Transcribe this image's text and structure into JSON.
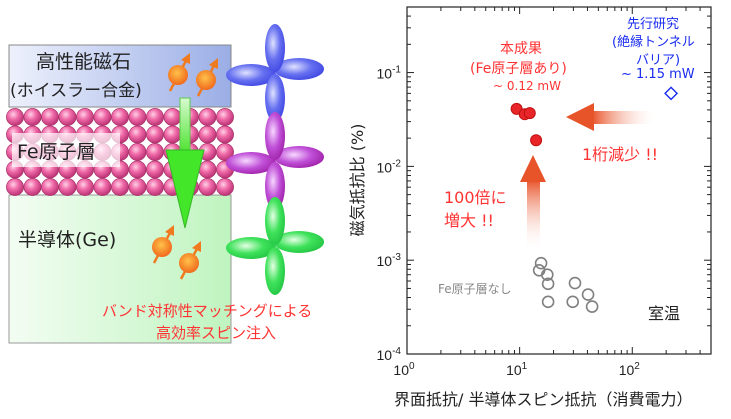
{
  "diagram": {
    "magnet_label_line1": "高性能磁石",
    "magnet_label_line2": "(ホイスラー合金)",
    "fe_layer_label": "Fe原子層",
    "semiconductor_label": "半導体(Ge)",
    "caption_line1": "バンド対称性マッチングによる",
    "caption_line2": "高効率スピン注入",
    "colors": {
      "magnet": "#9fb2ea",
      "fe_atom": "#f06aa8",
      "semiconductor": "#c4f7c4",
      "arrow": "#44e62a",
      "spin": "#f07a20",
      "caption": "#ff3333"
    }
  },
  "chart_data": {
    "type": "scatter",
    "xscale": "log",
    "yscale": "log",
    "xlim": [
      1,
      500
    ],
    "ylim": [
      0.0001,
      0.5
    ],
    "xlabel": "界面抵抗/ 半導体スピン抵抗（消費電力）",
    "ylabel": "磁気抵抗比 (%)",
    "xticks": [
      {
        "value": 1,
        "base": "10",
        "exp": "0"
      },
      {
        "value": 10,
        "base": "10",
        "exp": "1"
      },
      {
        "value": 100,
        "base": "10",
        "exp": "2"
      }
    ],
    "yticks": [
      {
        "value": 0.0001,
        "base": "10",
        "exp": "-4"
      },
      {
        "value": 0.001,
        "base": "10",
        "exp": "-3"
      },
      {
        "value": 0.01,
        "base": "10",
        "exp": "-2"
      },
      {
        "value": 0.1,
        "base": "10",
        "exp": "-1"
      }
    ],
    "series": [
      {
        "name": "本成果 (Fe原子層あり)",
        "marker": "filled-circle",
        "color": "#e8262a",
        "points": [
          [
            9.4,
            0.041
          ],
          [
            11.1,
            0.036
          ],
          [
            12.3,
            0.037
          ],
          [
            14.0,
            0.019
          ]
        ]
      },
      {
        "name": "Fe原子層なし",
        "marker": "open-circle",
        "color": "#808080",
        "points": [
          [
            15.5,
            0.00093
          ],
          [
            14.9,
            0.00078
          ],
          [
            17.6,
            0.0007
          ],
          [
            17.9,
            0.00056
          ],
          [
            17.9,
            0.00036
          ],
          [
            31,
            0.00057
          ],
          [
            29.6,
            0.00036
          ],
          [
            40.5,
            0.00043
          ],
          [
            44,
            0.00032
          ]
        ]
      },
      {
        "name": "先行研究 (絶縁トンネルバリア)",
        "marker": "open-diamond",
        "color": "#1a2cf0",
        "points": [
          [
            221,
            0.06
          ]
        ]
      }
    ],
    "annotations": {
      "this_work_line1": "本成果",
      "this_work_line2": "(Fe原子層あり)",
      "this_work_power": "~ 0.12 mW",
      "prior_line1": "先行研究",
      "prior_line2": "(絶縁トンネル",
      "prior_line3": "バリア)",
      "prior_power": "~ 1.15 mW",
      "reduction": "1桁減少 !!",
      "increase_line1": "100倍に",
      "increase_line2": "増大 !!",
      "no_fe": "Fe原子層なし",
      "room_temp": "室温"
    }
  }
}
